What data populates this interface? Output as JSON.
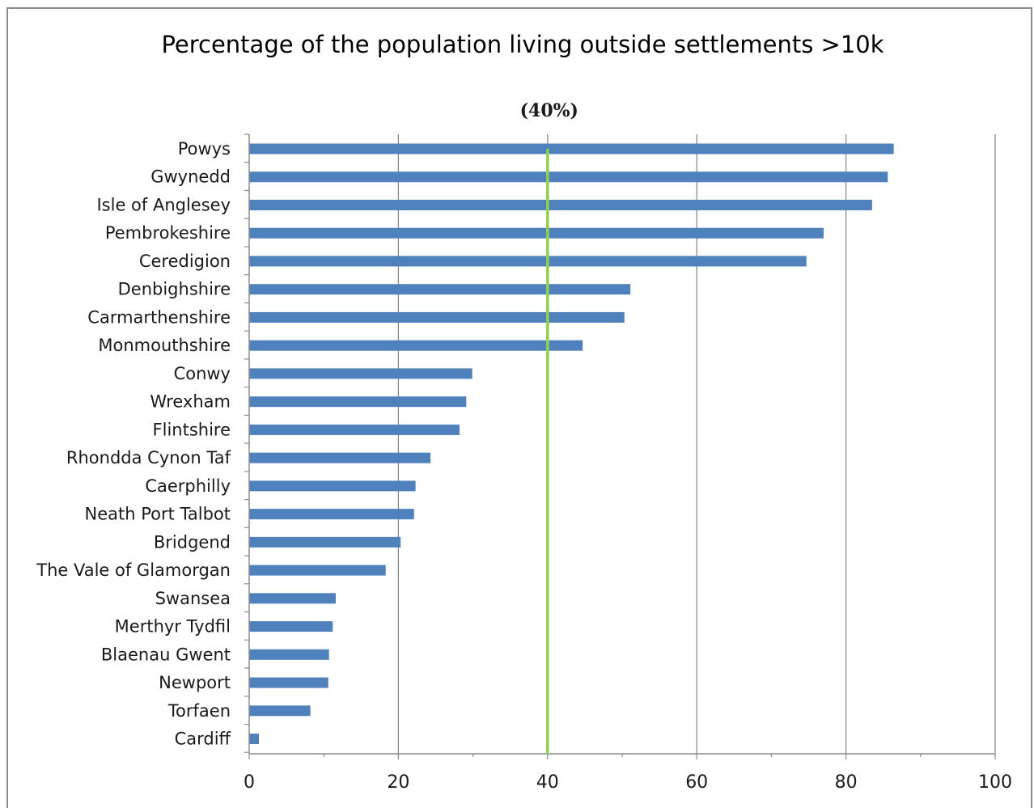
{
  "chart_data": {
    "type": "bar",
    "orientation": "horizontal",
    "title": "Percentage of the population living outside settlements >10k",
    "xlabel": "",
    "ylabel": "",
    "xlim": [
      0,
      100
    ],
    "x_ticks": [
      0,
      20,
      40,
      60,
      80,
      100
    ],
    "grid": true,
    "categories": [
      "Powys",
      "Gwynedd",
      "Isle of Anglesey",
      "Pembrokeshire",
      "Ceredigion",
      "Denbighshire",
      "Carmarthenshire",
      "Monmouthshire",
      "Conwy",
      "Wrexham",
      "Flintshire",
      "Rhondda Cynon Taf",
      "Caerphilly",
      "Neath Port Talbot",
      "Bridgend",
      "The Vale of Glamorgan",
      "Swansea",
      "Merthyr Tydfil",
      "Blaenau Gwent",
      "Newport",
      "Torfaen",
      "Cardiff"
    ],
    "values": [
      86.4,
      85.6,
      83.5,
      77.0,
      74.7,
      51.1,
      50.3,
      44.7,
      29.9,
      29.1,
      28.2,
      24.3,
      22.3,
      22.1,
      20.3,
      18.3,
      11.6,
      11.2,
      10.7,
      10.6,
      8.2,
      1.3
    ],
    "reference_line": {
      "value": 40,
      "label": "(40%)",
      "color": "#8fd14f"
    },
    "bar_color": "#4f81bd"
  }
}
